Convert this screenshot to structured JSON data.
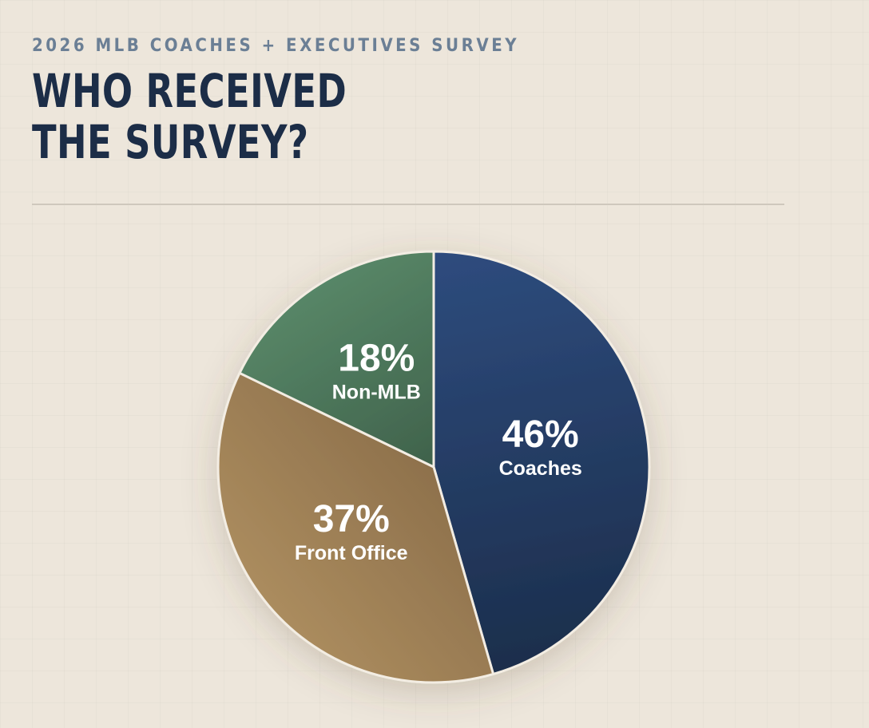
{
  "header": {
    "eyebrow": "2026 MLB COACHES + EXECUTIVES SURVEY",
    "title_line1": "WHO RECEIVED",
    "title_line2": "THE SURVEY?"
  },
  "chart_data": {
    "type": "pie",
    "legend": "none",
    "slices": [
      {
        "label": "Coaches",
        "value": 46,
        "display": "46%",
        "color_start": "#2e4c7e",
        "color_end": "#1b2d4a"
      },
      {
        "label": "Front Office",
        "value": 37,
        "display": "37%",
        "color_start": "#8b6e4a",
        "color_end": "#ab8c5e"
      },
      {
        "label": "Non-MLB",
        "value": 18,
        "display": "18%",
        "color_start": "#3d5e48",
        "color_end": "#578667"
      }
    ],
    "slice_border_color": "#f3ede3",
    "start_angle_deg": 0,
    "direction": "clockwise"
  }
}
